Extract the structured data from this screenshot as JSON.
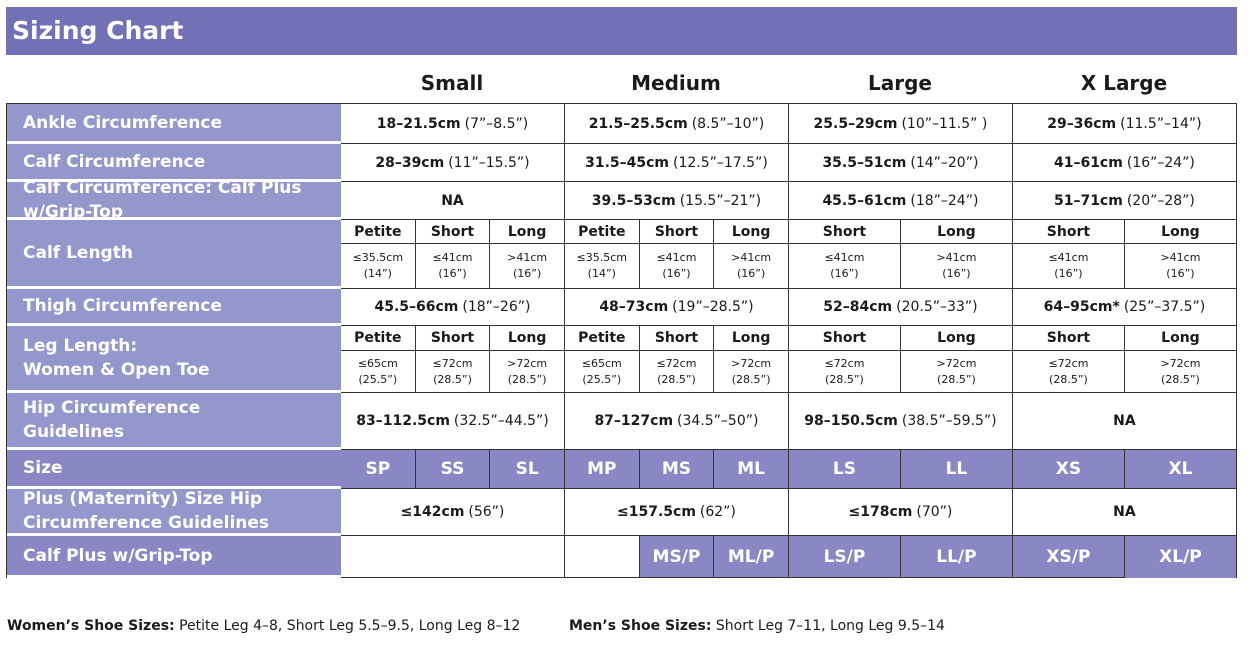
{
  "title": "Sizing Chart",
  "size_headers": [
    "Small",
    "Medium",
    "Large",
    "X Large"
  ],
  "colors": {
    "header": "#7371b5",
    "label": "#9497cc",
    "size_row": "#8a88c4"
  },
  "rows": {
    "ankle": {
      "label": "Ankle Circumference",
      "values": [
        {
          "b": "18–21.5cm",
          "n": "(7”–8.5”)"
        },
        {
          "b": "21.5–25.5cm",
          "n": "(8.5”–10”)"
        },
        {
          "b": "25.5–29cm",
          "n": "(10”–11.5” )"
        },
        {
          "b": "29–36cm",
          "n": "(11.5”–14”)"
        }
      ]
    },
    "calf": {
      "label": "Calf Circumference",
      "values": [
        {
          "b": "28–39cm",
          "n": "(11”–15.5”)"
        },
        {
          "b": "31.5–45cm",
          "n": "(12.5”–17.5”)"
        },
        {
          "b": "35.5–51cm",
          "n": "(14”–20”)"
        },
        {
          "b": "41–61cm",
          "n": "(16”–24”)"
        }
      ]
    },
    "calf_plus": {
      "label": "Calf Circumference: Calf Plus w/Grip-Top",
      "values": [
        {
          "b": "NA",
          "n": ""
        },
        {
          "b": "39.5–53cm",
          "n": "(15.5”–21”)"
        },
        {
          "b": "45.5–61cm",
          "n": "(18”–24”)"
        },
        {
          "b": "51–71cm",
          "n": "(20”–28”)"
        }
      ]
    },
    "calf_length": {
      "label": "Calf Length",
      "subheaders": [
        "Petite",
        "Short",
        "Long",
        "Petite",
        "Short",
        "Long",
        "Short",
        "Long",
        "Short",
        "Long"
      ],
      "values": [
        [
          "≤35.5cm",
          "(14”)"
        ],
        [
          "≤41cm",
          "(16”)"
        ],
        [
          ">41cm",
          "(16”)"
        ],
        [
          "≤35.5cm",
          "(14”)"
        ],
        [
          "≤41cm",
          "(16”)"
        ],
        [
          ">41cm",
          "(16”)"
        ],
        [
          "≤41cm",
          "(16”)"
        ],
        [
          ">41cm",
          "(16”)"
        ],
        [
          "≤41cm",
          "(16”)"
        ],
        [
          ">41cm",
          "(16”)"
        ]
      ]
    },
    "thigh": {
      "label": "Thigh Circumference",
      "values": [
        {
          "b": "45.5–66cm",
          "n": "(18”–26”)"
        },
        {
          "b": "48–73cm",
          "n": "(19”–28.5”)"
        },
        {
          "b": "52–84cm",
          "n": "(20.5”–33”)"
        },
        {
          "b": "64–95cm*",
          "n": "(25”–37.5”)"
        }
      ]
    },
    "leg_length": {
      "label": [
        "Leg Length:",
        "Women & Open Toe"
      ],
      "subheaders": [
        "Petite",
        "Short",
        "Long",
        "Petite",
        "Short",
        "Long",
        "Short",
        "Long",
        "Short",
        "Long"
      ],
      "values": [
        [
          "≤65cm",
          "(25.5”)"
        ],
        [
          "≤72cm",
          "(28.5”)"
        ],
        [
          ">72cm",
          "(28.5”)"
        ],
        [
          "≤65cm",
          "(25.5”)"
        ],
        [
          "≤72cm",
          "(28.5”)"
        ],
        [
          ">72cm",
          "(28.5”)"
        ],
        [
          "≤72cm",
          "(28.5”)"
        ],
        [
          ">72cm",
          "(28.5”)"
        ],
        [
          "≤72cm",
          "(28.5”)"
        ],
        [
          ">72cm",
          "(28.5”)"
        ]
      ]
    },
    "hip": {
      "label": [
        "Hip Circumference",
        "Guidelines"
      ],
      "values": [
        {
          "b": "83–112.5cm",
          "n": "(32.5”–44.5”)"
        },
        {
          "b": "87–127cm",
          "n": "(34.5”–50”)"
        },
        {
          "b": "98–150.5cm",
          "n": "(38.5”–59.5”)"
        },
        {
          "b": "NA",
          "n": ""
        }
      ]
    },
    "size": {
      "label": "Size",
      "values": [
        "SP",
        "SS",
        "SL",
        "MP",
        "MS",
        "ML",
        "LS",
        "LL",
        "XS",
        "XL"
      ]
    },
    "plus_hip": {
      "label": [
        "Plus (Maternity) Size Hip",
        "Circumference Guidelines"
      ],
      "values": [
        {
          "b": "≤142cm",
          "n": "(56”)"
        },
        {
          "b": "≤157.5cm",
          "n": "(62”)"
        },
        {
          "b": "≤178cm",
          "n": "(70”)"
        },
        {
          "b": "NA",
          "n": ""
        }
      ]
    },
    "grip_top": {
      "label": "Calf Plus w/Grip-Top",
      "values": [
        "",
        "",
        "MS/P",
        "ML/P",
        "LS/P",
        "LL/P",
        "XS/P",
        "XL/P"
      ]
    }
  },
  "footer": {
    "women_label": "Women’s Shoe Sizes:",
    "women_text": "Petite Leg 4–8, Short Leg 5.5–9.5, Long Leg 8–12",
    "men_label": "Men’s Shoe Sizes:",
    "men_text": "Short Leg 7–11, Long Leg 9.5–14"
  }
}
